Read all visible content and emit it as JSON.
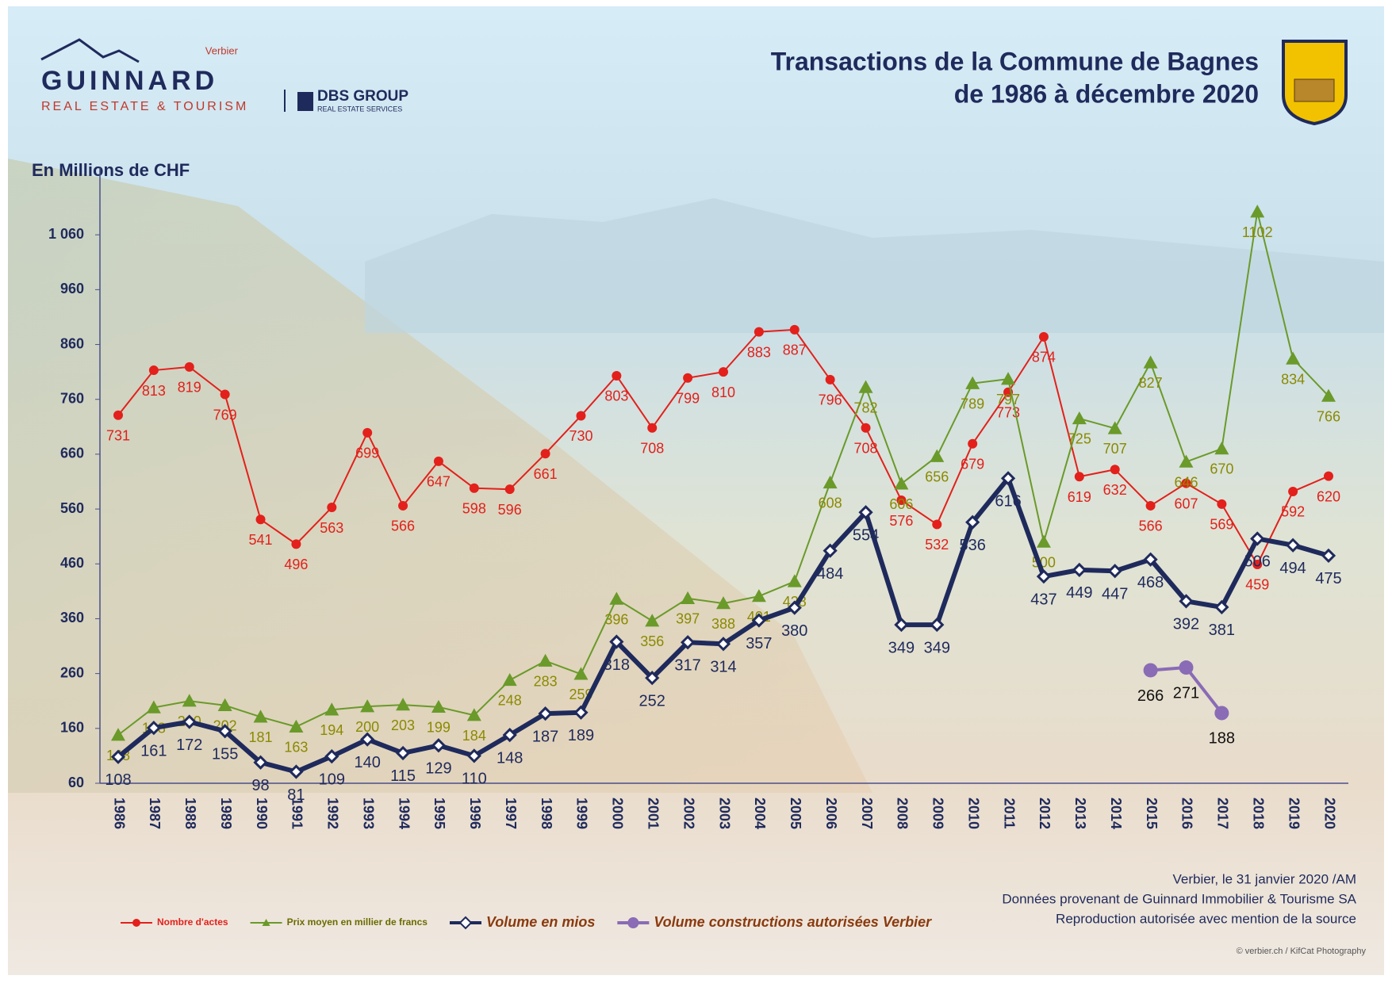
{
  "header": {
    "logo_top": "Verbier",
    "logo_name": "GUINNARD",
    "logo_sub": "REAL ESTATE & TOURISM",
    "group_name": "DBS GROUP",
    "group_sub": "REAL ESTATE SERVICES"
  },
  "footer": {
    "lines": [
      "Verbier, le 31 janvier 2020 /AM",
      "Données provenant de Guinnard Immobilier & Tourisme SA",
      "Reproduction autorisée avec mention de la source"
    ],
    "credit": "© verbier.ch / KifCat Photography"
  },
  "chart_data": {
    "type": "line",
    "title": [
      "Transactions de la Commune de Bagnes",
      "de 1986 à décembre 2020"
    ],
    "y_label": "En Millions de CHF",
    "categories": [
      "1986",
      "1987",
      "1988",
      "1989",
      "1990",
      "1991",
      "1992",
      "1993",
      "1994",
      "1995",
      "1996",
      "1997",
      "1998",
      "1999",
      "2000",
      "2001",
      "2002",
      "2003",
      "2004",
      "2005",
      "2006",
      "2007",
      "2008",
      "2009",
      "2010",
      "2011",
      "2012",
      "2013",
      "2014",
      "2015",
      "2016",
      "2017",
      "2018",
      "2019",
      "2020"
    ],
    "ylim": [
      60,
      1160
    ],
    "yticks": [
      60,
      160,
      260,
      360,
      460,
      560,
      660,
      760,
      860,
      960,
      {
        "value": 1060,
        "label": "1 060"
      }
    ],
    "series": [
      {
        "name": "Nombre d'actes",
        "color": "#e3201b",
        "marker": "circle",
        "values": [
          731,
          813,
          819,
          769,
          541,
          496,
          563,
          699,
          566,
          647,
          598,
          596,
          661,
          730,
          803,
          708,
          799,
          810,
          883,
          887,
          796,
          708,
          576,
          532,
          679,
          773,
          874,
          619,
          632,
          566,
          607,
          569,
          459,
          592,
          620
        ]
      },
      {
        "name": "Prix moyen en millier de francs",
        "color": "#6a9a2a",
        "marker": "triangle",
        "values": [
          148,
          198,
          210,
          202,
          181,
          163,
          194,
          200,
          203,
          199,
          184,
          248,
          283,
          259,
          396,
          356,
          397,
          388,
          401,
          428,
          608,
          782,
          606,
          656,
          789,
          797,
          500,
          725,
          707,
          827,
          646,
          670,
          1102,
          834,
          766
        ]
      },
      {
        "name": "Volume en mios",
        "color": "#1f2a5c",
        "marker": "diamond",
        "values": [
          108,
          161,
          172,
          155,
          98,
          81,
          109,
          140,
          115,
          129,
          110,
          148,
          187,
          189,
          318,
          252,
          317,
          314,
          357,
          380,
          484,
          554,
          349,
          349,
          536,
          616,
          437,
          449,
          447,
          468,
          392,
          381,
          506,
          494,
          475
        ]
      },
      {
        "name": "Volume constructions autorisées Verbier",
        "color": "#8a6bb5",
        "marker": "circle",
        "values": [
          null,
          null,
          null,
          null,
          null,
          null,
          null,
          null,
          null,
          null,
          null,
          null,
          null,
          null,
          null,
          null,
          null,
          null,
          null,
          null,
          null,
          null,
          null,
          null,
          null,
          null,
          null,
          null,
          null,
          266,
          271,
          188,
          null,
          null,
          null
        ]
      }
    ]
  }
}
